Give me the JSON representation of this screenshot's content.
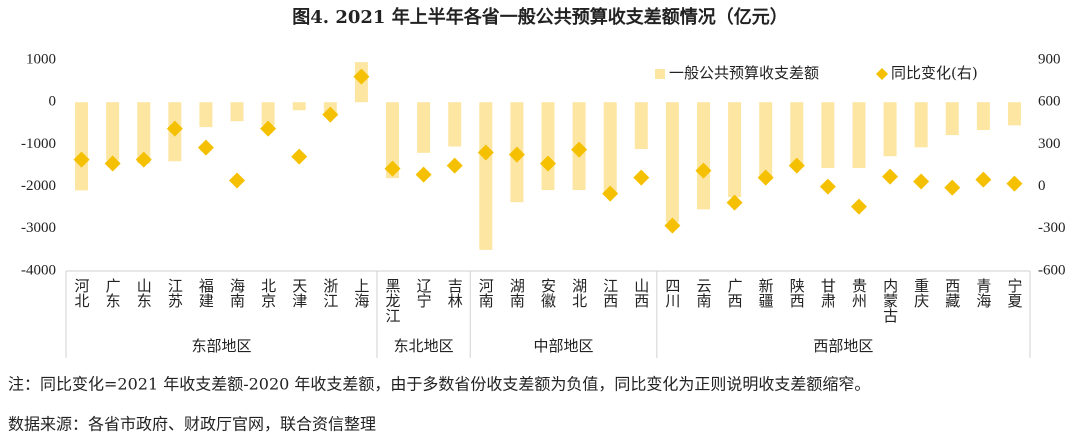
{
  "chart_data": {
    "type": "bar-scatter",
    "title": "图4. 2021 年上半年各省一般公共预算收支差额情况（亿元）",
    "categories": [
      "河北",
      "广东",
      "山东",
      "江苏",
      "福建",
      "海南",
      "北京",
      "天津",
      "浙江",
      "上海",
      "黑龙江",
      "辽宁",
      "吉林",
      "河南",
      "湖南",
      "安徽",
      "湖北",
      "江西",
      "山西",
      "四川",
      "云南",
      "广西",
      "新疆",
      "陕西",
      "甘肃",
      "贵州",
      "内蒙古",
      "重庆",
      "西藏",
      "青海",
      "宁夏"
    ],
    "groups": [
      {
        "label": "东部地区",
        "size": 10
      },
      {
        "label": "东北地区",
        "size": 3
      },
      {
        "label": "中部地区",
        "size": 6
      },
      {
        "label": "西部地区",
        "size": 12
      }
    ],
    "series": [
      {
        "name": "一般公共预算收支差额",
        "kind": "bar",
        "color": "#fde6a2",
        "values": [
          -2090,
          -1380,
          -1450,
          -1400,
          -590,
          -450,
          -550,
          -190,
          -300,
          950,
          -1800,
          -1200,
          -1050,
          -3500,
          -2370,
          -2080,
          -2080,
          -2200,
          -1110,
          -2840,
          -2540,
          -2250,
          -1850,
          -1470,
          -1560,
          -1560,
          -1280,
          -1070,
          -780,
          -660,
          -550
        ]
      },
      {
        "name": "同比变化(右)",
        "kind": "scatter",
        "axis": "y2",
        "color": "#f5c000",
        "values": [
          192,
          164,
          192,
          412,
          277,
          43,
          412,
          213,
          512,
          782,
          128,
          85,
          149,
          242,
          227,
          164,
          263,
          -50,
          64,
          -277,
          114,
          -114,
          64,
          149,
          0,
          -142,
          71,
          36,
          -7,
          50,
          21
        ]
      }
    ],
    "ylim": [
      -4000,
      1000
    ],
    "yticks": [
      -4000,
      -3000,
      -2000,
      -1000,
      0,
      1000
    ],
    "y2lim": [
      -600,
      900
    ],
    "y2ticks": [
      -600,
      -300,
      0,
      300,
      600,
      900
    ],
    "legend": "top-right",
    "note": "注：同比变化=2021 年收支差额-2020 年收支差额，由于多数省份收支差额为负值，同比变化为正则说明收支差额缩窄。",
    "source": "数据来源：各省市政府、财政厅官网，联合资信整理"
  }
}
